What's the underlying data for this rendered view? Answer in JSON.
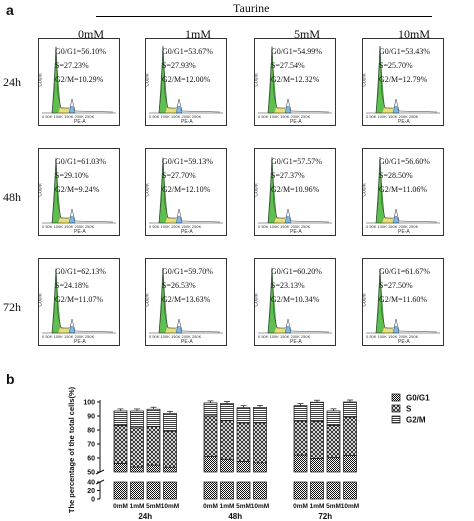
{
  "panel_a": {
    "letter": "a",
    "header": "Taurine",
    "concentrations": [
      "0mM",
      "1mM",
      "5mM",
      "10mM"
    ],
    "times": [
      "24h",
      "48h",
      "72h"
    ],
    "count_label": "Count",
    "x_axis_label": "PE-A",
    "x_ticks": [
      "0",
      "50K",
      "100K",
      "150K",
      "200K",
      "250K"
    ],
    "stats": [
      [
        {
          "g0g1": "G0/G1=56.10%",
          "s": "S=27.23%",
          "g2m": "G2/M=10.29%"
        },
        {
          "g0g1": "G0/G1=53.67%",
          "s": "S=27.93%",
          "g2m": "G2/M=12.00%"
        },
        {
          "g0g1": "G0/G1=54.99%",
          "s": "S=27.54%",
          "g2m": "G2/M=12.32%"
        },
        {
          "g0g1": "G0/G1=53.43%",
          "s": "S=25.70%",
          "g2m": "G2/M=12.79%"
        }
      ],
      [
        {
          "g0g1": "G0/G1=61.03%",
          "s": "S=29.10%",
          "g2m": "G2/M=9.24%"
        },
        {
          "g0g1": "G0/G1=59.13%",
          "s": "S=27.70%",
          "g2m": "G2/M=12.10%"
        },
        {
          "g0g1": "G0/G1=57.57%",
          "s": "S=27.37%",
          "g2m": "G2/M=10.96%"
        },
        {
          "g0g1": "G0/G1=56.60%",
          "s": "S=28.50%",
          "g2m": "G2/M=11.06%"
        }
      ],
      [
        {
          "g0g1": "G0/G1=62.13%",
          "s": "S=24.18%",
          "g2m": "G2/M=11.07%"
        },
        {
          "g0g1": "G0/G1=59.70%",
          "s": "S=26.53%",
          "g2m": "G2/M=13.63%"
        },
        {
          "g0g1": "G0/G1=60.20%",
          "s": "S=23.13%",
          "g2m": "G2/M=10.34%"
        },
        {
          "g0g1": "G0/G1=61.67%",
          "s": "S=27.50%",
          "g2m": "G2/M=11.60%"
        }
      ]
    ]
  },
  "chart_data": {
    "type": "bar",
    "stacked": true,
    "letter": "b",
    "ylabel": "The percentage of the total cells(%)",
    "y_ticks_upper": [
      "50",
      "60",
      "70",
      "80",
      "90",
      "100"
    ],
    "y_ticks_lower": [
      "0",
      "20",
      "40"
    ],
    "y_axis_break": [
      40,
      50
    ],
    "ylim": [
      0,
      100
    ],
    "groups": [
      "24h",
      "48h",
      "72h"
    ],
    "categories": [
      "0mM",
      "1mM",
      "5mM",
      "10mM"
    ],
    "series": [
      {
        "name": "G0/G1",
        "pattern": "dense-dots",
        "values": [
          [
            56.1,
            53.67,
            54.99,
            53.43
          ],
          [
            61.03,
            59.13,
            57.57,
            56.6
          ],
          [
            62.13,
            59.7,
            60.2,
            61.67
          ]
        ]
      },
      {
        "name": "S",
        "pattern": "crosshatch",
        "values": [
          [
            27.23,
            27.93,
            27.54,
            25.7
          ],
          [
            29.1,
            27.7,
            27.37,
            28.5
          ],
          [
            24.18,
            26.53,
            23.13,
            27.5
          ]
        ]
      },
      {
        "name": "G2/M",
        "pattern": "horizontal-lines",
        "values": [
          [
            10.29,
            12.0,
            12.32,
            12.79
          ],
          [
            9.24,
            12.1,
            10.96,
            11.06
          ],
          [
            11.07,
            13.63,
            10.34,
            11.6
          ]
        ]
      }
    ],
    "legend_position": "top-right"
  }
}
